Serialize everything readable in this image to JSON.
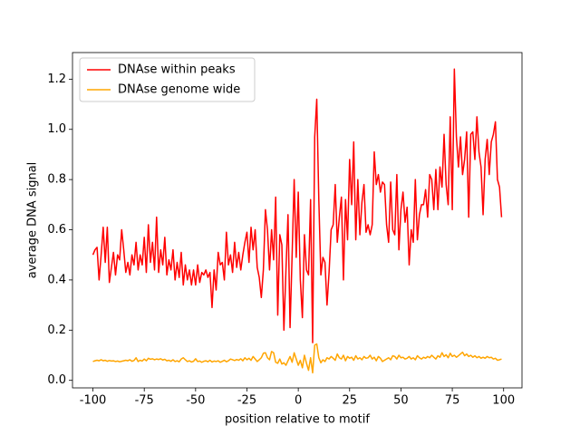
{
  "chart_data": {
    "type": "line",
    "xlabel": "position relative to motif",
    "ylabel": "average DNA signal",
    "legend": "upper left",
    "grid": false,
    "xlim": [
      -109.95,
      108.95
    ],
    "ylim": [
      -0.03,
      1.306
    ],
    "xticks": [
      -100,
      -75,
      -50,
      -25,
      0,
      25,
      50,
      75,
      100
    ],
    "yticks": [
      {
        "value": 0,
        "label": "0.0"
      },
      0.2,
      0.4,
      0.6,
      0.8,
      {
        "value": 1,
        "label": "1.0"
      },
      1.2
    ],
    "x": [
      -100,
      -99,
      -98,
      -97,
      -96,
      -95,
      -94,
      -93,
      -92,
      -91,
      -90,
      -89,
      -88,
      -87,
      -86,
      -85,
      -84,
      -83,
      -82,
      -81,
      -80,
      -79,
      -78,
      -77,
      -76,
      -75,
      -74,
      -73,
      -72,
      -71,
      -70,
      -69,
      -68,
      -67,
      -66,
      -65,
      -64,
      -63,
      -62,
      -61,
      -60,
      -59,
      -58,
      -57,
      -56,
      -55,
      -54,
      -53,
      -52,
      -51,
      -50,
      -49,
      -48,
      -47,
      -46,
      -45,
      -44,
      -43,
      -42,
      -41,
      -40,
      -39,
      -38,
      -37,
      -36,
      -35,
      -34,
      -33,
      -32,
      -31,
      -30,
      -29,
      -28,
      -27,
      -26,
      -25,
      -24,
      -23,
      -22,
      -21,
      -20,
      -19,
      -18,
      -17,
      -16,
      -15,
      -14,
      -13,
      -12,
      -11,
      -10,
      -9,
      -8,
      -7,
      -6,
      -5,
      -4,
      -3,
      -2,
      -1,
      0,
      1,
      2,
      3,
      4,
      5,
      6,
      7,
      8,
      9,
      10,
      11,
      12,
      13,
      14,
      15,
      16,
      17,
      18,
      19,
      20,
      21,
      22,
      23,
      24,
      25,
      26,
      27,
      28,
      29,
      30,
      31,
      32,
      33,
      34,
      35,
      36,
      37,
      38,
      39,
      40,
      41,
      42,
      43,
      44,
      45,
      46,
      47,
      48,
      49,
      50,
      51,
      52,
      53,
      54,
      55,
      56,
      57,
      58,
      59,
      60,
      61,
      62,
      63,
      64,
      65,
      66,
      67,
      68,
      69,
      70,
      71,
      72,
      73,
      74,
      75,
      76,
      77,
      78,
      79,
      80,
      81,
      82,
      83,
      84,
      85,
      86,
      87,
      88,
      89,
      90,
      91,
      92,
      93,
      94,
      95,
      96,
      97,
      98,
      99
    ],
    "series": [
      {
        "name": "DNAse within peaks",
        "color": "#ff0000",
        "values": [
          0.5,
          0.52,
          0.53,
          0.4,
          0.5,
          0.61,
          0.47,
          0.61,
          0.39,
          0.45,
          0.51,
          0.42,
          0.5,
          0.48,
          0.6,
          0.52,
          0.43,
          0.47,
          0.42,
          0.5,
          0.46,
          0.55,
          0.44,
          0.5,
          0.46,
          0.57,
          0.43,
          0.62,
          0.47,
          0.55,
          0.44,
          0.65,
          0.43,
          0.52,
          0.46,
          0.57,
          0.42,
          0.48,
          0.44,
          0.52,
          0.4,
          0.47,
          0.41,
          0.51,
          0.38,
          0.46,
          0.4,
          0.44,
          0.38,
          0.44,
          0.38,
          0.46,
          0.39,
          0.43,
          0.42,
          0.44,
          0.41,
          0.43,
          0.29,
          0.44,
          0.36,
          0.51,
          0.46,
          0.47,
          0.4,
          0.59,
          0.46,
          0.5,
          0.43,
          0.55,
          0.45,
          0.51,
          0.44,
          0.5,
          0.55,
          0.59,
          0.47,
          0.61,
          0.52,
          0.6,
          0.45,
          0.41,
          0.33,
          0.44,
          0.68,
          0.6,
          0.44,
          0.6,
          0.48,
          0.73,
          0.26,
          0.58,
          0.54,
          0.2,
          0.44,
          0.66,
          0.21,
          0.5,
          0.8,
          0.49,
          0.75,
          0.4,
          0.25,
          0.58,
          0.44,
          0.42,
          0.72,
          0.15,
          0.97,
          1.12,
          0.72,
          0.42,
          0.49,
          0.47,
          0.3,
          0.43,
          0.6,
          0.62,
          0.78,
          0.55,
          0.65,
          0.73,
          0.4,
          0.72,
          0.56,
          0.88,
          0.7,
          0.95,
          0.56,
          0.8,
          0.58,
          0.71,
          0.78,
          0.59,
          0.62,
          0.58,
          0.62,
          0.91,
          0.78,
          0.82,
          0.75,
          0.79,
          0.78,
          0.62,
          0.55,
          0.79,
          0.6,
          0.58,
          0.82,
          0.52,
          0.68,
          0.75,
          0.63,
          0.69,
          0.46,
          0.6,
          0.55,
          0.8,
          0.56,
          0.66,
          0.7,
          0.7,
          0.76,
          0.65,
          0.82,
          0.8,
          0.68,
          0.84,
          0.68,
          0.85,
          0.77,
          0.98,
          0.78,
          0.7,
          1.05,
          0.68,
          1.24,
          0.97,
          0.85,
          0.97,
          0.82,
          0.88,
          0.99,
          0.65,
          0.98,
          0.99,
          0.88,
          1.05,
          0.91,
          0.85,
          0.66,
          0.88,
          0.96,
          0.82,
          0.95,
          0.98,
          1.03,
          0.8,
          0.77,
          0.65
        ]
      },
      {
        "name": "DNAse genome wide",
        "color": "#ffa500",
        "values": [
          0.075,
          0.078,
          0.08,
          0.078,
          0.082,
          0.078,
          0.08,
          0.076,
          0.079,
          0.077,
          0.078,
          0.075,
          0.077,
          0.074,
          0.076,
          0.078,
          0.08,
          0.078,
          0.082,
          0.076,
          0.079,
          0.09,
          0.075,
          0.08,
          0.077,
          0.085,
          0.078,
          0.088,
          0.084,
          0.086,
          0.082,
          0.085,
          0.083,
          0.086,
          0.081,
          0.084,
          0.078,
          0.08,
          0.076,
          0.082,
          0.075,
          0.078,
          0.074,
          0.085,
          0.09,
          0.082,
          0.075,
          0.078,
          0.073,
          0.076,
          0.086,
          0.075,
          0.077,
          0.072,
          0.076,
          0.078,
          0.074,
          0.08,
          0.073,
          0.077,
          0.075,
          0.078,
          0.072,
          0.076,
          0.08,
          0.074,
          0.078,
          0.085,
          0.082,
          0.079,
          0.083,
          0.08,
          0.086,
          0.078,
          0.09,
          0.082,
          0.088,
          0.08,
          0.095,
          0.085,
          0.075,
          0.082,
          0.09,
          0.108,
          0.11,
          0.09,
          0.082,
          0.115,
          0.11,
          0.072,
          0.068,
          0.085,
          0.065,
          0.07,
          0.06,
          0.078,
          0.095,
          0.072,
          0.11,
          0.085,
          0.06,
          0.08,
          0.05,
          0.1,
          0.068,
          0.04,
          0.09,
          0.03,
          0.14,
          0.145,
          0.09,
          0.07,
          0.082,
          0.075,
          0.09,
          0.085,
          0.095,
          0.088,
          0.08,
          0.105,
          0.09,
          0.085,
          0.1,
          0.078,
          0.095,
          0.088,
          0.092,
          0.08,
          0.098,
          0.085,
          0.09,
          0.082,
          0.095,
          0.088,
          0.09,
          0.1,
          0.085,
          0.092,
          0.078,
          0.095,
          0.088,
          0.075,
          0.08,
          0.085,
          0.09,
          0.082,
          0.098,
          0.095,
          0.085,
          0.1,
          0.09,
          0.092,
          0.085,
          0.088,
          0.095,
          0.085,
          0.09,
          0.082,
          0.098,
          0.09,
          0.085,
          0.092,
          0.088,
          0.095,
          0.09,
          0.1,
          0.092,
          0.085,
          0.098,
          0.092,
          0.11,
          0.095,
          0.102,
          0.09,
          0.108,
          0.095,
          0.1,
          0.092,
          0.098,
          0.105,
          0.112,
          0.098,
          0.105,
          0.095,
          0.1,
          0.092,
          0.098,
          0.09,
          0.095,
          0.088,
          0.092,
          0.088,
          0.095,
          0.09,
          0.092,
          0.085,
          0.088,
          0.08,
          0.082,
          0.085
        ]
      }
    ]
  }
}
